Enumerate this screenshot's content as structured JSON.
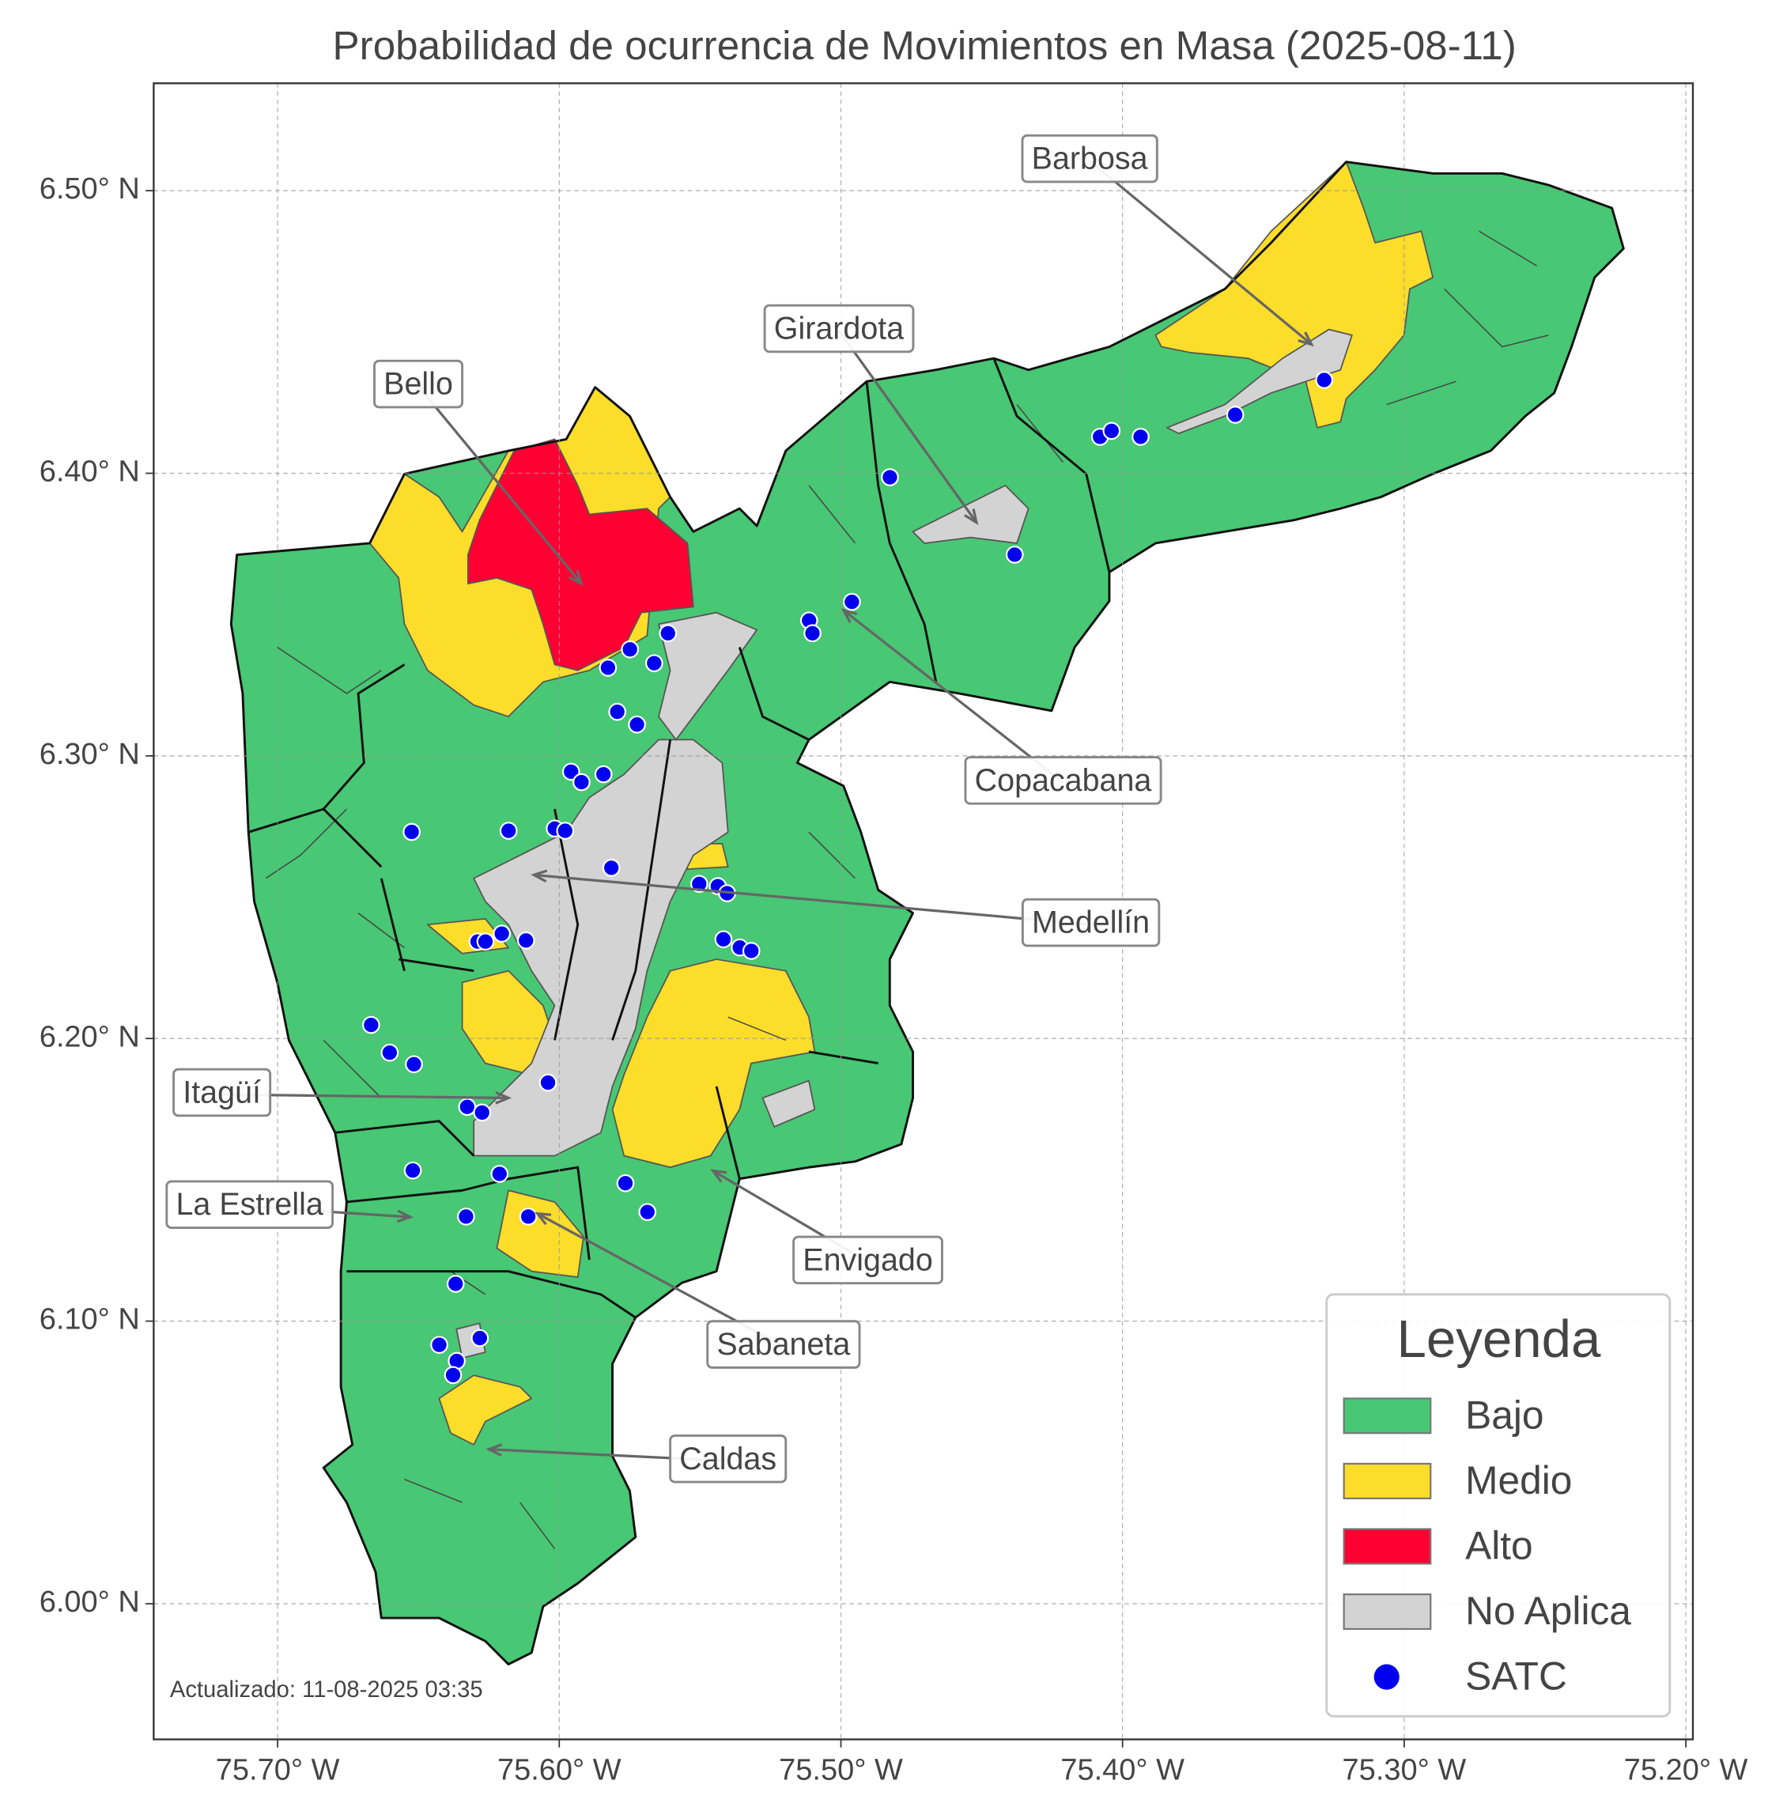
{
  "chart_data": {
    "type": "map",
    "title": "Probabilidad de ocurrencia de Movimientos en Masa (2025-08-11)",
    "xlim": [
      -75.744,
      -75.1975
    ],
    "ylim": [
      5.952,
      6.538
    ],
    "xticks": [
      {
        "value": -75.7,
        "label": "75.70° W"
      },
      {
        "value": -75.6,
        "label": "75.60° W"
      },
      {
        "value": -75.5,
        "label": "75.50° W"
      },
      {
        "value": -75.4,
        "label": "75.40° W"
      },
      {
        "value": -75.3,
        "label": "75.30° W"
      },
      {
        "value": -75.2,
        "label": "75.20° W"
      }
    ],
    "yticks": [
      {
        "value": 6.0,
        "label": "6.00° N"
      },
      {
        "value": 6.1,
        "label": "6.10° N"
      },
      {
        "value": 6.2,
        "label": "6.20° N"
      },
      {
        "value": 6.3,
        "label": "6.30° N"
      },
      {
        "value": 6.4,
        "label": "6.40° N"
      },
      {
        "value": 6.5,
        "label": "6.50° N"
      }
    ],
    "grid": true,
    "legend": {
      "title": "Leyenda",
      "position": "lower right",
      "entries": [
        {
          "name": "Bajo",
          "color": "#48c774"
        },
        {
          "name": "Medio",
          "color": "#fbdd2a"
        },
        {
          "name": "Alto",
          "color": "#ff0033"
        },
        {
          "name": "No Aplica",
          "color": "#d3d3d3"
        }
      ]
    },
    "series": [
      {
        "name": "SATC",
        "color": "#0000ee",
        "lon": [
          -75.4826,
          -75.4383,
          -75.408,
          -75.4039,
          -75.3936,
          -75.36,
          -75.3284,
          -75.4961,
          -75.5113,
          -75.5101,
          -75.5614,
          -75.5749,
          -75.5663,
          -75.5827,
          -75.5794,
          -75.5724,
          -75.5958,
          -75.5921,
          -75.5843,
          -75.6524,
          -75.618,
          -75.6016,
          -75.5979,
          -75.5815,
          -75.5503,
          -75.5437,
          -75.5404,
          -75.6204,
          -75.629,
          -75.6262,
          -75.6118,
          -75.5417,
          -75.5359,
          -75.5318,
          -75.6668,
          -75.6602,
          -75.6516,
          -75.604,
          -75.6327,
          -75.6274,
          -75.652,
          -75.6212,
          -75.5765,
          -75.5687,
          -75.6331,
          -75.611,
          -75.6368,
          -75.6426,
          -75.6282,
          -75.6364,
          -75.6377
        ],
        "lat": [
          6.3986,
          6.3712,
          6.4129,
          6.415,
          6.4129,
          6.4207,
          6.433,
          6.3545,
          6.3479,
          6.3434,
          6.3434,
          6.3377,
          6.3328,
          6.3312,
          6.3156,
          6.3111,
          6.2944,
          6.2907,
          6.2935,
          6.2731,
          6.2735,
          6.2743,
          6.2735,
          6.2604,
          6.2547,
          6.2539,
          6.2514,
          6.2371,
          6.2343,
          6.2343,
          6.2347,
          6.2351,
          6.2322,
          6.231,
          6.2048,
          6.195,
          6.1909,
          6.1844,
          6.1758,
          6.1738,
          6.1533,
          6.1521,
          6.1488,
          6.1386,
          6.137,
          6.137,
          6.1132,
          6.0916,
          6.094,
          6.0859,
          6.0809
        ]
      }
    ],
    "annotations": [
      "Barbosa",
      "Girardota",
      "Bello",
      "Copacabana",
      "Medellín",
      "Itagüí",
      "La Estrella",
      "Envigado",
      "Sabaneta",
      "Caldas"
    ],
    "footnote": "Actualizado: 11-08-2025 03:35"
  }
}
